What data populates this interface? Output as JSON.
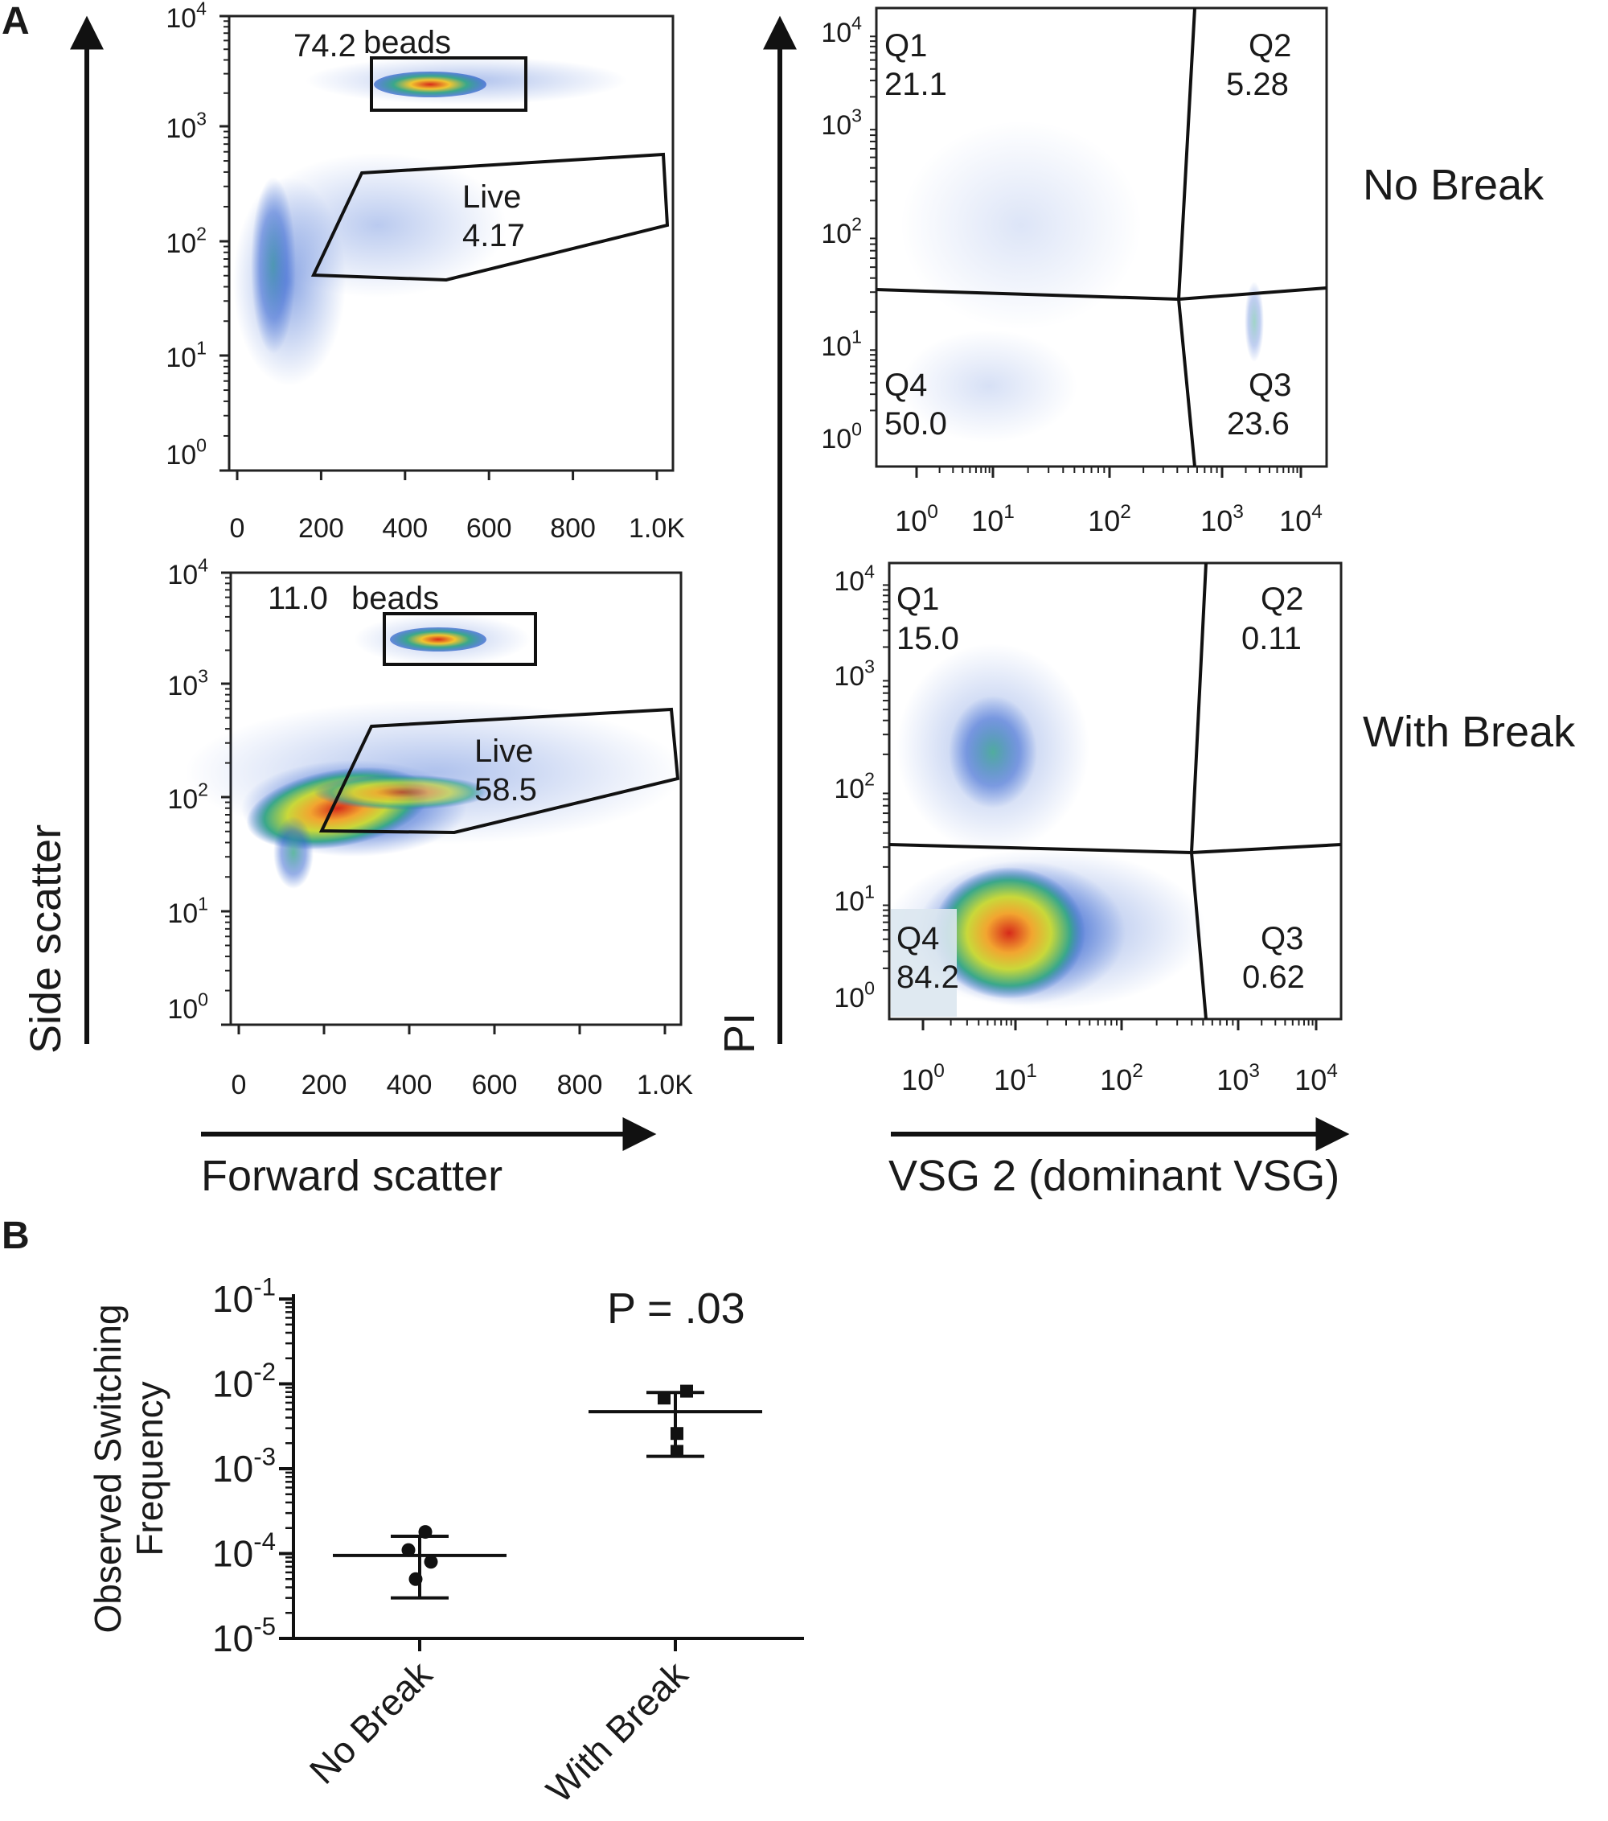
{
  "panel_labels": {
    "a": "A",
    "b": "B"
  },
  "colors": {
    "dense": "#d62a1a",
    "mid": "#f2c530",
    "low": "#3aa88a",
    "sparse": "#2e5fcf",
    "ink": "#111111"
  },
  "panel_a": {
    "scatter_axis_label_x": "Forward scatter",
    "scatter_axis_label_y": "Side scatter",
    "vsg_axis_label_x": "VSG 2 (dominant VSG)",
    "vsg_axis_label_y": "PI",
    "fsc_ticks": [
      "0",
      "200",
      "400",
      "600",
      "800",
      "1.0K"
    ],
    "log_ticks": [
      {
        "base": "10",
        "exp": "0"
      },
      {
        "base": "10",
        "exp": "1"
      },
      {
        "base": "10",
        "exp": "2"
      },
      {
        "base": "10",
        "exp": "3"
      },
      {
        "base": "10",
        "exp": "4"
      }
    ],
    "conditions": {
      "no_break": "No Break",
      "with_break": "With Break"
    },
    "no_break": {
      "beads_value": "74.2",
      "beads_label": "beads",
      "live_label": "Live",
      "live_value": "4.17",
      "quadrants": {
        "q1": {
          "name": "Q1",
          "value": "21.1"
        },
        "q2": {
          "name": "Q2",
          "value": "5.28"
        },
        "q3": {
          "name": "Q3",
          "value": "23.6"
        },
        "q4": {
          "name": "Q4",
          "value": "50.0"
        }
      }
    },
    "with_break": {
      "beads_value": "11.0",
      "beads_label": "beads",
      "live_label": "Live",
      "live_value": "58.5",
      "quadrants": {
        "q1": {
          "name": "Q1",
          "value": "15.0"
        },
        "q2": {
          "name": "Q2",
          "value": "0.11"
        },
        "q3": {
          "name": "Q3",
          "value": "0.62"
        },
        "q4": {
          "name": "Q4",
          "value": "84.2"
        }
      }
    }
  },
  "chart_data": {
    "type": "scatter",
    "title": "",
    "annotation": "P = .03",
    "ylabel_lines": [
      "Observed Switching",
      "Frequency"
    ],
    "xlabel": "",
    "y_scale": "log",
    "ylim": [
      1e-05,
      0.1
    ],
    "y_tick_labels": [
      {
        "base": "10",
        "exp": "-5"
      },
      {
        "base": "10",
        "exp": "-4"
      },
      {
        "base": "10",
        "exp": "-3"
      },
      {
        "base": "10",
        "exp": "-2"
      },
      {
        "base": "10",
        "exp": "-1"
      }
    ],
    "categories": [
      "No Break",
      "With Break"
    ],
    "series": [
      {
        "name": "No Break",
        "marker": "circle",
        "points": [
          0.00018,
          0.00011,
          8e-05,
          5e-05
        ],
        "mean": 9.5e-05,
        "err_low": 3e-05,
        "err_high": 0.00016
      },
      {
        "name": "With Break",
        "marker": "square",
        "points": [
          0.0082,
          0.0068,
          0.0026,
          0.0016
        ],
        "mean": 0.0047,
        "err_low": 0.0014,
        "err_high": 0.0079
      }
    ]
  }
}
